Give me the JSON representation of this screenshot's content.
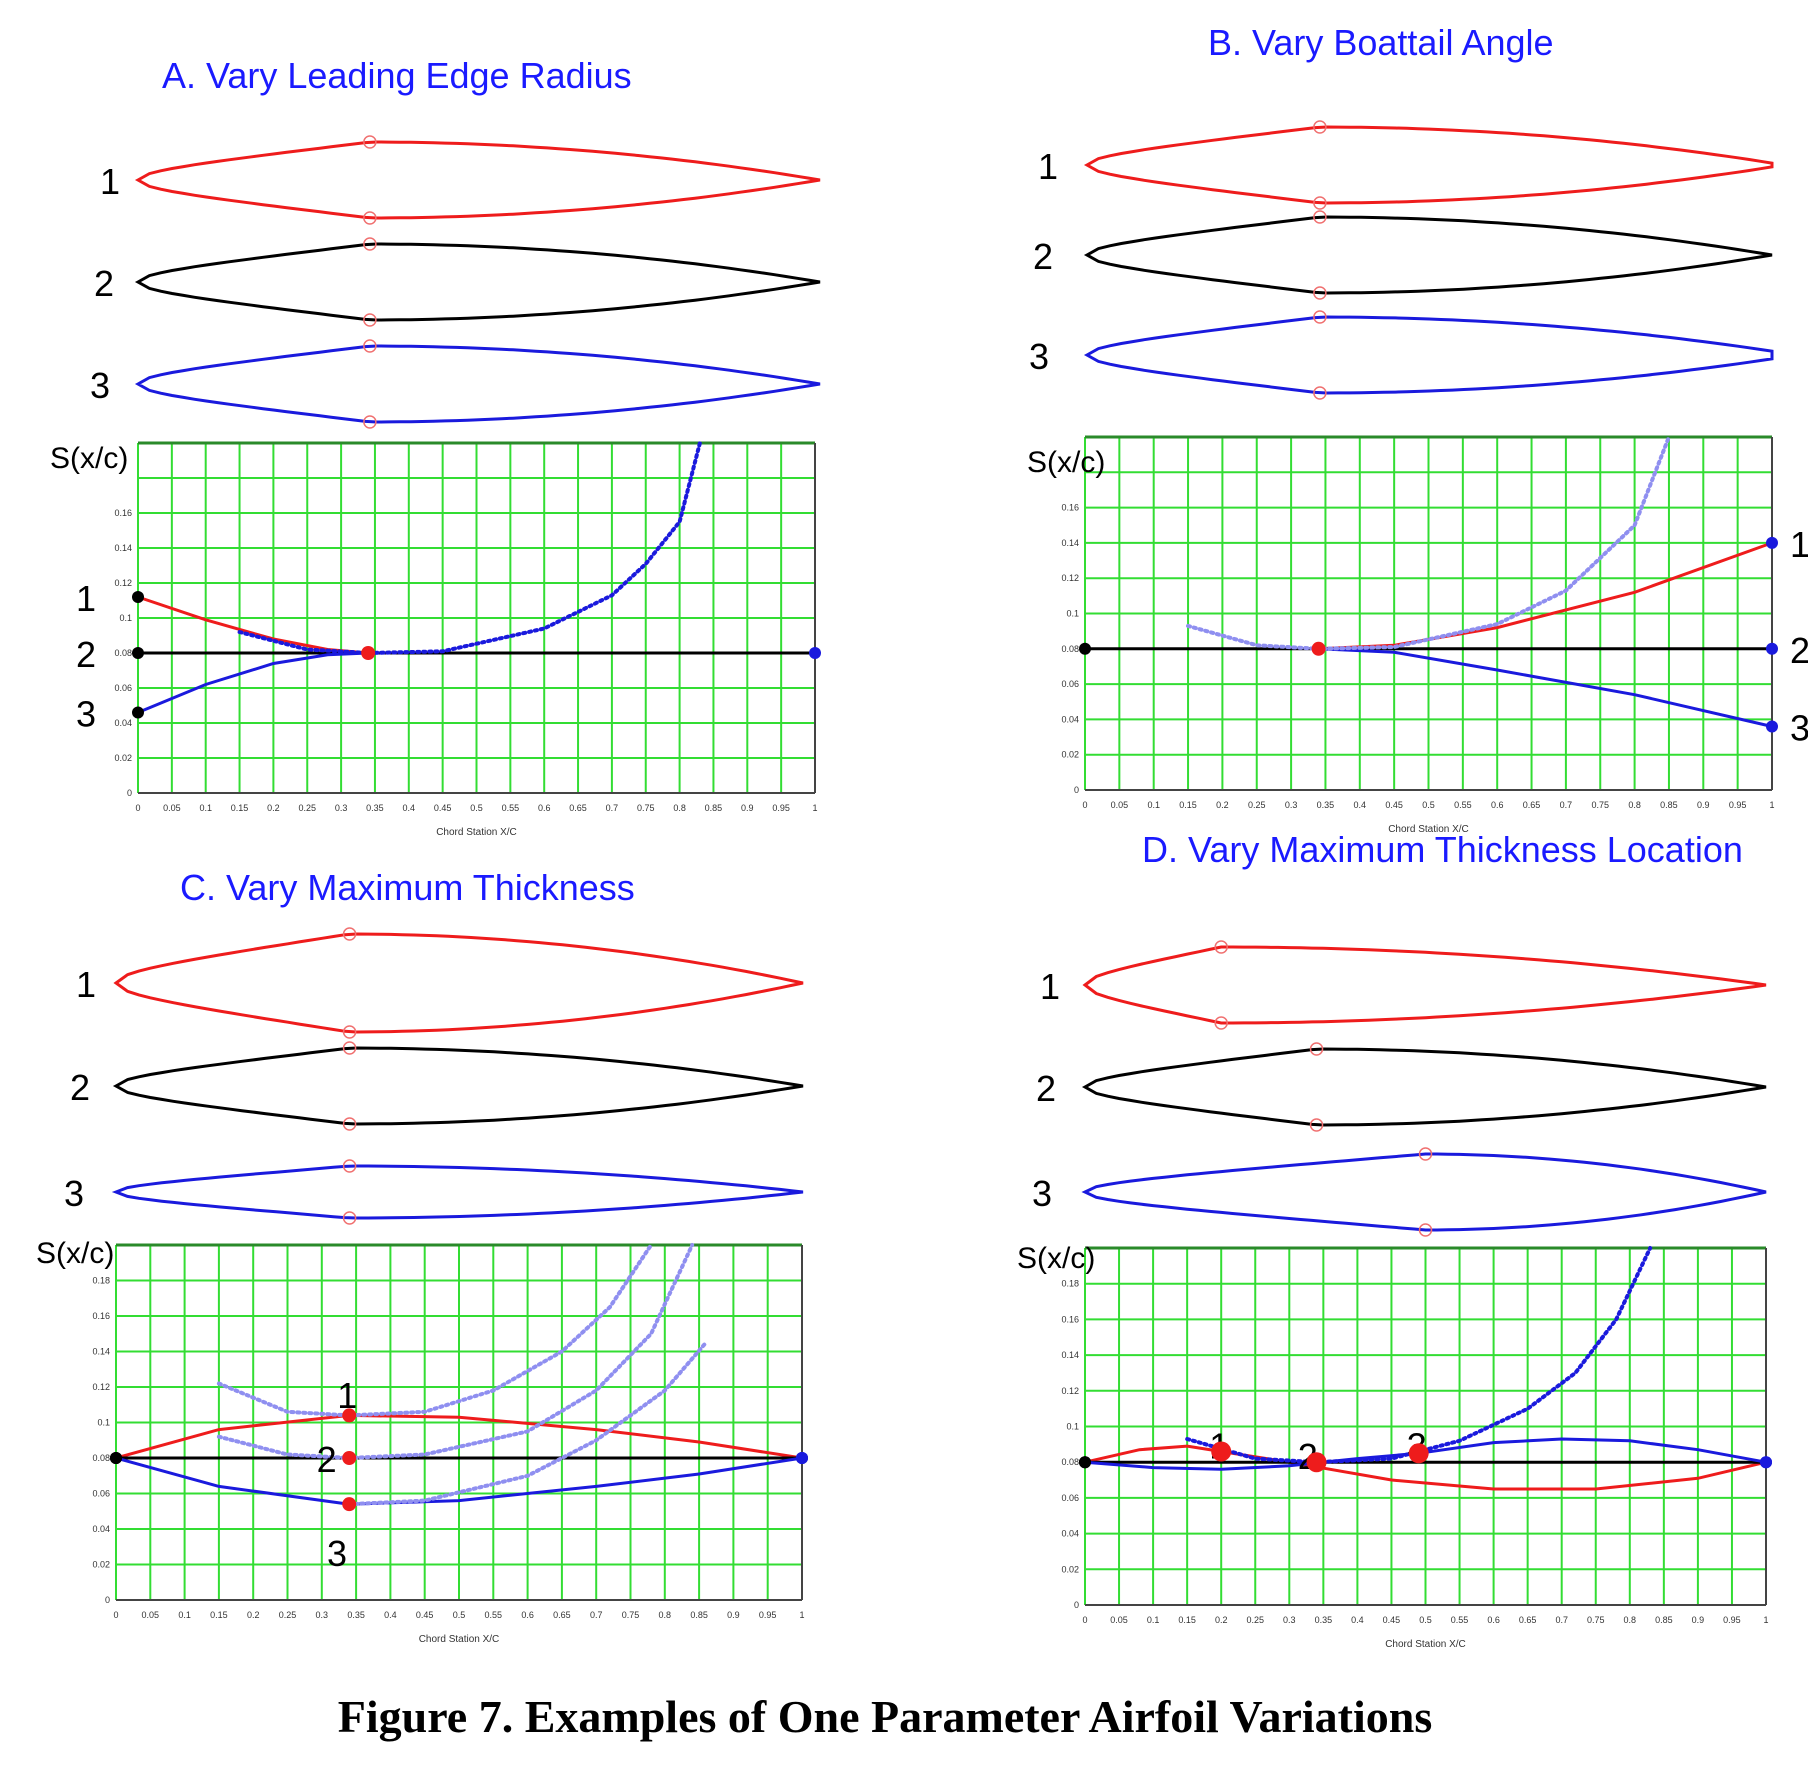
{
  "figure_caption": "Figure 7. Examples of One Parameter Airfoil Variations",
  "colors": {
    "title": "#1a1aff",
    "red": "#ee1c1c",
    "black": "#000000",
    "blue": "#1a1add",
    "grid": "#33dd33",
    "light_blue": "#8f8ff0"
  },
  "panels": [
    {
      "title": "A. Vary Leading Edge Radius",
      "airfoil_labels": [
        "1",
        "2",
        "3"
      ],
      "ylabel": "S(x/c)",
      "xlabel": "Chord Station X/C",
      "y_ticks": [
        "0",
        "0.02",
        "0.04",
        "0.06",
        "0.08",
        "0.1",
        "0.12",
        "0.14",
        "0.16"
      ],
      "x_ticks": [
        "0",
        "0.05",
        "0.1",
        "0.15",
        "0.2",
        "0.25",
        "0.3",
        "0.35",
        "0.4",
        "0.45",
        "0.5",
        "0.55",
        "0.6",
        "0.65",
        "0.7",
        "0.75",
        "0.8",
        "0.85",
        "0.9",
        "0.95",
        "1"
      ],
      "left_labels": [
        {
          "text": "1",
          "y": 0.112
        },
        {
          "text": "2",
          "y": 0.08
        },
        {
          "text": "3",
          "y": 0.046
        }
      ],
      "right_labels": [],
      "curve_labels": []
    },
    {
      "title": "B. Vary Boattail Angle",
      "airfoil_labels": [
        "1",
        "2",
        "3"
      ],
      "ylabel": "S(x/c)",
      "xlabel": "Chord Station X/C",
      "y_ticks": [
        "0",
        "0.02",
        "0.04",
        "0.06",
        "0.08",
        "0.1",
        "0.12",
        "0.14",
        "0.16"
      ],
      "x_ticks": [
        "0",
        "0.05",
        "0.1",
        "0.15",
        "0.2",
        "0.25",
        "0.3",
        "0.35",
        "0.4",
        "0.45",
        "0.5",
        "0.55",
        "0.6",
        "0.65",
        "0.7",
        "0.75",
        "0.8",
        "0.85",
        "0.9",
        "0.95",
        "1"
      ],
      "left_labels": [],
      "right_labels": [
        {
          "text": "1",
          "y": 0.14
        },
        {
          "text": "2",
          "y": 0.08
        },
        {
          "text": "3",
          "y": 0.036
        }
      ],
      "curve_labels": []
    },
    {
      "title": "C. Vary Maximum Thickness",
      "airfoil_labels": [
        "1",
        "2",
        "3"
      ],
      "ylabel": "S(x/c)",
      "xlabel": "Chord Station X/C",
      "y_ticks": [
        "0",
        "0.02",
        "0.04",
        "0.06",
        "0.08",
        "0.1",
        "0.12",
        "0.14",
        "0.16",
        "0.18"
      ],
      "x_ticks": [
        "0",
        "0.05",
        "0.1",
        "0.15",
        "0.2",
        "0.25",
        "0.3",
        "0.35",
        "0.4",
        "0.45",
        "0.5",
        "0.55",
        "0.6",
        "0.65",
        "0.7",
        "0.75",
        "0.8",
        "0.85",
        "0.9",
        "0.95",
        "1"
      ],
      "left_labels": [],
      "right_labels": [],
      "curve_labels": [
        {
          "text": "1",
          "x": 0.34,
          "y": 0.116
        },
        {
          "text": "2",
          "x": 0.31,
          "y": 0.08
        },
        {
          "text": "3",
          "x": 0.325,
          "y": 0.027
        }
      ]
    },
    {
      "title": "D. Vary Maximum Thickness Location",
      "airfoil_labels": [
        "1",
        "2",
        "3"
      ],
      "ylabel": "S(x/c)",
      "xlabel": "Chord Station X/C",
      "y_ticks": [
        "0",
        "0.02",
        "0.04",
        "0.06",
        "0.08",
        "0.1",
        "0.12",
        "0.14",
        "0.16",
        "0.18"
      ],
      "x_ticks": [
        "0",
        "0.05",
        "0.1",
        "0.15",
        "0.2",
        "0.25",
        "0.3",
        "0.35",
        "0.4",
        "0.45",
        "0.5",
        "0.55",
        "0.6",
        "0.65",
        "0.7",
        "0.75",
        "0.8",
        "0.85",
        "0.9",
        "0.95",
        "1"
      ],
      "left_labels": [],
      "right_labels": [],
      "curve_labels": [
        {
          "text": "1",
          "x": 0.2,
          "y": 0.09
        },
        {
          "text": "2",
          "x": 0.33,
          "y": 0.084
        },
        {
          "text": "3",
          "x": 0.49,
          "y": 0.09
        }
      ]
    }
  ],
  "chart_data": [
    {
      "type": "line",
      "title": "A. Vary Leading Edge Radius",
      "xlabel": "Chord Station X/C",
      "ylabel": "S(x/c)",
      "xlim": [
        0,
        1
      ],
      "ylim": [
        0,
        0.2
      ],
      "grid": true,
      "series": [
        {
          "name": "1",
          "color": "red",
          "x": [
            0,
            0.1,
            0.2,
            0.28,
            0.34
          ],
          "y": [
            0.112,
            0.099,
            0.088,
            0.082,
            0.08
          ]
        },
        {
          "name": "2",
          "color": "black",
          "x": [
            0,
            1
          ],
          "y": [
            0.08,
            0.08
          ]
        },
        {
          "name": "3",
          "color": "blue",
          "x": [
            0,
            0.1,
            0.2,
            0.28,
            0.34
          ],
          "y": [
            0.046,
            0.062,
            0.074,
            0.079,
            0.08
          ]
        },
        {
          "name": "1",
          "color": "blue-dotted",
          "x": [
            0.15,
            0.25,
            0.34,
            0.45,
            0.6,
            0.7,
            0.75,
            0.8,
            0.83
          ],
          "y": [
            0.092,
            0.082,
            0.08,
            0.081,
            0.094,
            0.113,
            0.131,
            0.155,
            0.2
          ]
        }
      ]
    },
    {
      "type": "line",
      "title": "B. Vary Boattail Angle",
      "xlabel": "Chord Station X/C",
      "ylabel": "S(x/c)",
      "xlim": [
        0,
        1
      ],
      "ylim": [
        0,
        0.2
      ],
      "grid": true,
      "series": [
        {
          "name": "1",
          "color": "red",
          "x": [
            0.34,
            0.45,
            0.6,
            0.8,
            1
          ],
          "y": [
            0.08,
            0.082,
            0.092,
            0.112,
            0.14
          ]
        },
        {
          "name": "2",
          "color": "black",
          "x": [
            0,
            1
          ],
          "y": [
            0.08,
            0.08
          ]
        },
        {
          "name": "3",
          "color": "blue",
          "x": [
            0.34,
            0.45,
            0.6,
            0.8,
            1
          ],
          "y": [
            0.08,
            0.078,
            0.068,
            0.054,
            0.036
          ]
        },
        {
          "name": "1",
          "color": "light-blue-dotted",
          "x": [
            0.15,
            0.25,
            0.34,
            0.45,
            0.6,
            0.7,
            0.8,
            0.85
          ],
          "y": [
            0.093,
            0.082,
            0.08,
            0.081,
            0.094,
            0.113,
            0.15,
            0.2
          ]
        }
      ]
    },
    {
      "type": "line",
      "title": "C. Vary Maximum Thickness",
      "xlabel": "Chord Station X/C",
      "ylabel": "S(x/c)",
      "xlim": [
        0,
        1
      ],
      "ylim": [
        0,
        0.2
      ],
      "grid": true,
      "series": [
        {
          "name": "1",
          "color": "red",
          "x": [
            0,
            0.15,
            0.34,
            0.5,
            0.7,
            0.85,
            1
          ],
          "y": [
            0.08,
            0.096,
            0.104,
            0.103,
            0.096,
            0.089,
            0.08
          ]
        },
        {
          "name": "2",
          "color": "black",
          "x": [
            0,
            1
          ],
          "y": [
            0.08,
            0.08
          ]
        },
        {
          "name": "3",
          "color": "blue",
          "x": [
            0,
            0.15,
            0.34,
            0.5,
            0.7,
            0.85,
            1
          ],
          "y": [
            0.08,
            0.064,
            0.054,
            0.056,
            0.064,
            0.071,
            0.08
          ]
        },
        {
          "name": "1",
          "color": "light-blue-dotted",
          "x": [
            0.15,
            0.25,
            0.34,
            0.45,
            0.55,
            0.65,
            0.72,
            0.78
          ],
          "y": [
            0.122,
            0.106,
            0.104,
            0.106,
            0.118,
            0.14,
            0.165,
            0.2
          ]
        },
        {
          "name": "2",
          "color": "light-blue-dotted",
          "x": [
            0.15,
            0.25,
            0.34,
            0.45,
            0.6,
            0.7,
            0.78,
            0.84
          ],
          "y": [
            0.092,
            0.082,
            0.08,
            0.082,
            0.095,
            0.118,
            0.15,
            0.2
          ]
        },
        {
          "name": "3",
          "color": "light-blue-dotted",
          "x": [
            0.34,
            0.45,
            0.6,
            0.7,
            0.8,
            0.86
          ],
          "y": [
            0.054,
            0.056,
            0.07,
            0.09,
            0.118,
            0.145
          ]
        }
      ]
    },
    {
      "type": "line",
      "title": "D. Vary Maximum Thickness Location",
      "xlabel": "Chord Station X/C",
      "ylabel": "S(x/c)",
      "xlim": [
        0,
        1
      ],
      "ylim": [
        0,
        0.2
      ],
      "grid": true,
      "series": [
        {
          "name": "1",
          "color": "red",
          "x": [
            0,
            0.08,
            0.15,
            0.2,
            0.3,
            0.45,
            0.6,
            0.75,
            0.9,
            1
          ],
          "y": [
            0.08,
            0.087,
            0.089,
            0.086,
            0.08,
            0.07,
            0.065,
            0.065,
            0.071,
            0.08
          ]
        },
        {
          "name": "2",
          "color": "black",
          "x": [
            0,
            1
          ],
          "y": [
            0.08,
            0.08
          ]
        },
        {
          "name": "3",
          "color": "blue",
          "x": [
            0,
            0.1,
            0.2,
            0.3,
            0.4,
            0.49,
            0.6,
            0.7,
            0.8,
            0.9,
            1
          ],
          "y": [
            0.08,
            0.077,
            0.076,
            0.078,
            0.082,
            0.085,
            0.091,
            0.093,
            0.092,
            0.087,
            0.08
          ]
        },
        {
          "name": "2",
          "color": "blue-dotted",
          "x": [
            0.15,
            0.25,
            0.34,
            0.45,
            0.55,
            0.65,
            0.72,
            0.78,
            0.83
          ],
          "y": [
            0.093,
            0.082,
            0.08,
            0.082,
            0.092,
            0.11,
            0.13,
            0.16,
            0.2
          ]
        }
      ]
    }
  ]
}
